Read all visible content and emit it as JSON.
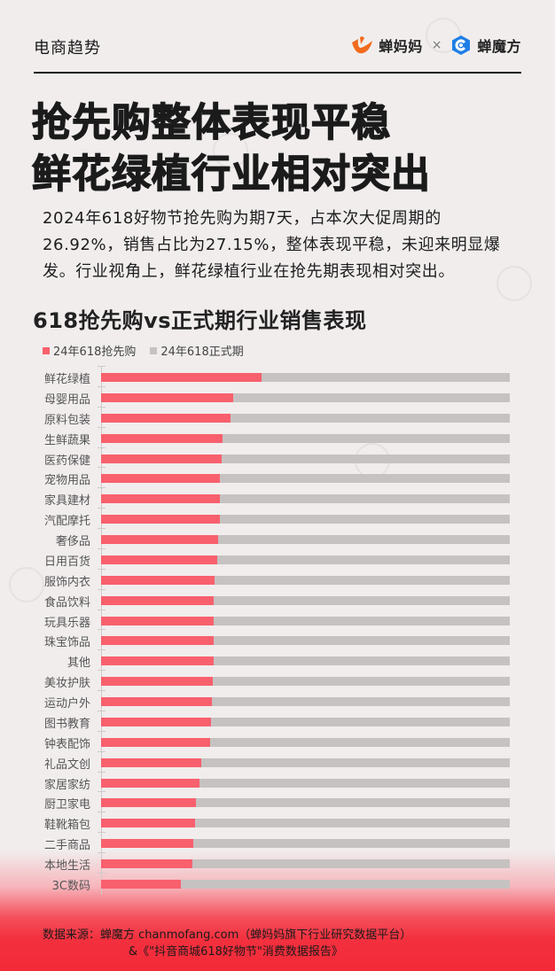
{
  "header": {
    "section": "电商趋势",
    "brand_left": "蝉妈妈",
    "brand_separator": "×",
    "brand_right": "蝉魔方",
    "brand_left_color": "#f26b1d",
    "brand_right_color": "#1f7fe6"
  },
  "headline": {
    "line1": "抢先购整体表现平稳",
    "line2": "鲜花绿植行业相对突出"
  },
  "summary": "2024年618好物节抢先购为期7天，占本次大促周期的26.92%，销售占比为27.15%，整体表现平稳，未迎来明显爆发。行业视角上，鲜花绿植行业在抢先期表现相对突出。",
  "chart": {
    "title": "618抢先购vs正式期行业销售表现",
    "legend": [
      {
        "label": "24年618抢先购",
        "color": "#f8606d"
      },
      {
        "label": "24年618正式期",
        "color": "#c6c2c2"
      }
    ]
  },
  "chart_data": {
    "type": "bar",
    "orientation": "horizontal-stacked-100",
    "title": "618抢先购vs正式期行业销售表现",
    "xlabel": "",
    "ylabel": "",
    "xlim": [
      0,
      100
    ],
    "unit": "% of sales",
    "legend_position": "top-left",
    "grid": false,
    "categories": [
      "鲜花绿植",
      "母婴用品",
      "原料包装",
      "生鲜蔬果",
      "医药保健",
      "宠物用品",
      "家具建材",
      "汽配摩托",
      "奢侈品",
      "日用百货",
      "服饰内衣",
      "食品饮料",
      "玩具乐器",
      "珠宝饰品",
      "其他",
      "美妆护肤",
      "运动户外",
      "图书教育",
      "钟表配饰",
      "礼品文创",
      "家居家纺",
      "厨卫家电",
      "鞋靴箱包",
      "二手商品",
      "本地生活",
      "3C数码"
    ],
    "series": [
      {
        "name": "24年618抢先购",
        "color": "#f8606d",
        "values": [
          39.3,
          32.3,
          31.7,
          29.7,
          29.5,
          29.1,
          29.1,
          29.0,
          28.6,
          28.4,
          27.8,
          27.6,
          27.5,
          27.5,
          27.5,
          27.3,
          27.1,
          26.9,
          26.7,
          24.5,
          24.1,
          23.2,
          23.0,
          22.6,
          22.3,
          19.5
        ]
      },
      {
        "name": "24年618正式期",
        "color": "#c6c2c2",
        "values": [
          60.7,
          67.7,
          68.3,
          70.3,
          70.5,
          70.9,
          70.9,
          71.0,
          71.4,
          71.6,
          72.2,
          72.4,
          72.5,
          72.5,
          72.5,
          72.7,
          72.9,
          73.1,
          73.3,
          75.5,
          75.9,
          76.8,
          77.0,
          77.4,
          77.7,
          80.5
        ]
      }
    ]
  },
  "footer": {
    "line1": "数据来源：蝉魔方 chanmofang.com（蝉妈妈旗下行业研究数据平台）",
    "line2": "&《\"抖音商城618好物节\"消费数据报告》"
  }
}
